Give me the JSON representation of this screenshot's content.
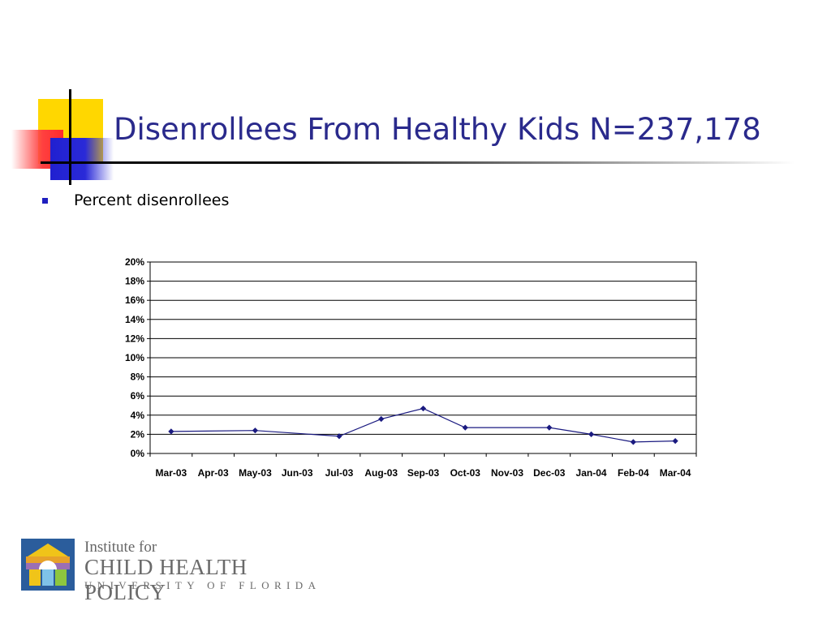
{
  "slide": {
    "title": "Disenrollees From Healthy Kids N=237,178",
    "bullet": "Percent disenrollees"
  },
  "logo": {
    "line1": "Institute for",
    "line2": "CHILD HEALTH POLICY",
    "line3": "UNIVERSITY OF FLORIDA",
    "icon": "schoolhouse-logo-icon"
  },
  "colors": {
    "title": "#2a2a8c",
    "bullet": "#1f1fbf",
    "series_line": "#1a1a80"
  },
  "chart_data": {
    "type": "line",
    "categories": [
      "Mar-03",
      "Apr-03",
      "May-03",
      "Jun-03",
      "Jul-03",
      "Aug-03",
      "Sep-03",
      "Oct-03",
      "Nov-03",
      "Dec-03",
      "Jan-04",
      "Feb-04",
      "Mar-04"
    ],
    "series": [
      {
        "name": "",
        "x": [
          "Mar-03",
          "May-03",
          "Jul-03",
          "Aug-03",
          "Sep-03",
          "Oct-03",
          "Dec-03",
          "Jan-04",
          "Feb-04",
          "Mar-04"
        ],
        "values": [
          2.3,
          2.4,
          1.8,
          3.6,
          4.7,
          2.7,
          2.7,
          2.0,
          1.2,
          1.3
        ]
      }
    ],
    "y_ticks": [
      "0%",
      "2%",
      "4%",
      "6%",
      "8%",
      "10%",
      "12%",
      "14%",
      "16%",
      "18%",
      "20%"
    ],
    "ylim": [
      0,
      20
    ],
    "y_unit": "%",
    "grid": true,
    "legend": "none",
    "title": "",
    "xlabel": "",
    "ylabel": ""
  }
}
